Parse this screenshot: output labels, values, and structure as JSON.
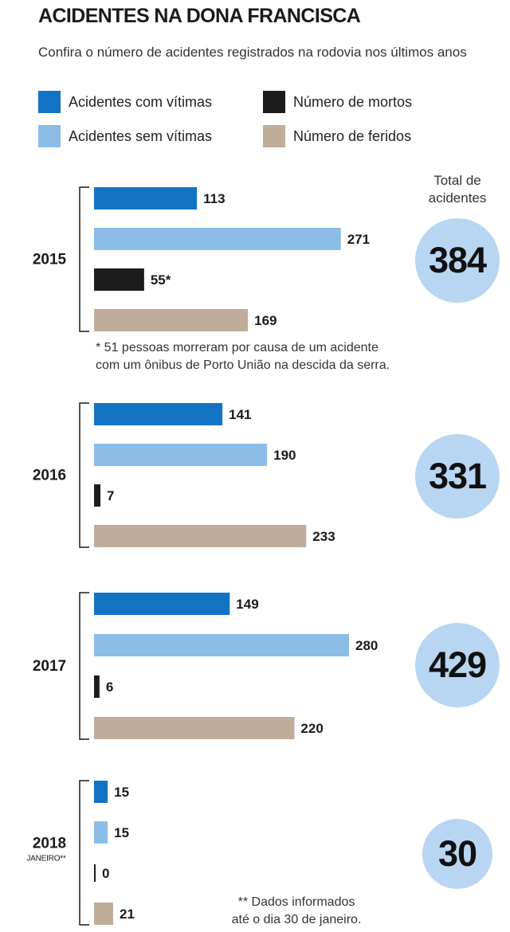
{
  "title": "ACIDENTES NA DONA FRANCISCA",
  "subtitle": "Confira o número de acidentes registrados na rodovia nos últimos anos",
  "legend": [
    {
      "label": "Acidentes com vítimas",
      "color": "#1373c3"
    },
    {
      "label": "Número de mortos",
      "color": "#1c1c1c"
    },
    {
      "label": "Acidentes sem vítimas",
      "color": "#8bbde6"
    },
    {
      "label": "Número de feridos",
      "color": "#bfad9a"
    }
  ],
  "chart_data": {
    "type": "bar",
    "orientation": "horizontal",
    "series_names": [
      "Acidentes com vítimas",
      "Acidentes sem vítimas",
      "Número de mortos",
      "Número de feridos"
    ],
    "series_colors": [
      "#1373c3",
      "#8bbde6",
      "#1c1c1c",
      "#bfad9a"
    ],
    "total_header": [
      "Total de",
      "acidentes"
    ],
    "circle_color": "#b8d6f1",
    "groups": [
      {
        "year": "2015",
        "year_sub": "",
        "values": [
          113,
          271,
          55,
          169
        ],
        "labels": [
          "113",
          "271",
          "55*",
          "169"
        ],
        "total": "384",
        "note": [
          "* 51 pessoas morreram por causa de um acidente",
          "com um ônibus de Porto União na descida da serra."
        ]
      },
      {
        "year": "2016",
        "year_sub": "",
        "values": [
          141,
          190,
          7,
          233
        ],
        "labels": [
          "141",
          "190",
          "7",
          "233"
        ],
        "total": "331",
        "note": []
      },
      {
        "year": "2017",
        "year_sub": "",
        "values": [
          149,
          280,
          6,
          220
        ],
        "labels": [
          "149",
          "280",
          "6",
          "220"
        ],
        "total": "429",
        "note": []
      },
      {
        "year": "2018",
        "year_sub": "JANEIRO**",
        "values": [
          15,
          15,
          0,
          21
        ],
        "labels": [
          "15",
          "15",
          "0",
          "21"
        ],
        "total": "30",
        "note": [
          "** Dados informados",
          "até o dia 30 de janeiro."
        ]
      }
    ]
  }
}
